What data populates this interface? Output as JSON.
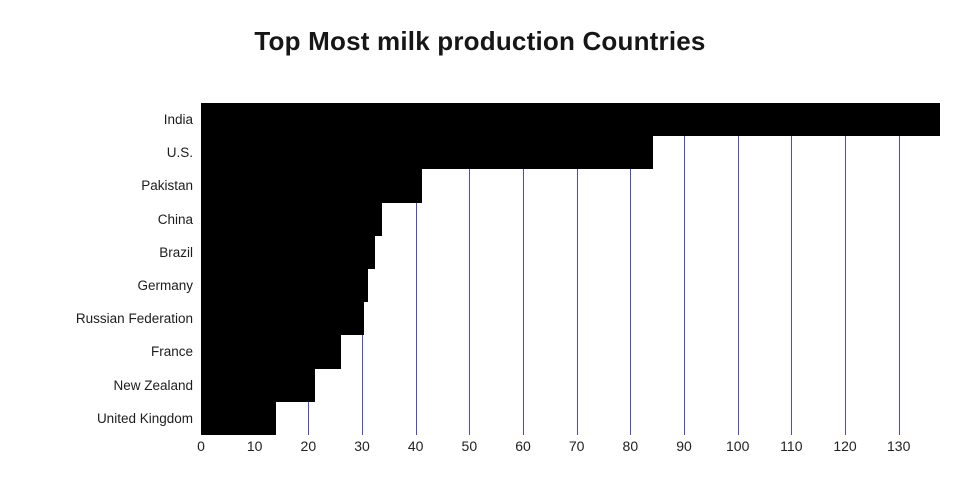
{
  "page": {
    "background": "#ffffff"
  },
  "chart_data": {
    "type": "bar",
    "orientation": "horizontal",
    "title": "Top Most milk production Countries",
    "categories": [
      "India",
      "U.S.",
      "Pakistan",
      "China",
      "Brazil",
      "Germany",
      "Russian Federation",
      "France",
      "New Zealand",
      "United Kingdom"
    ],
    "values": [
      137.7,
      84.2,
      41.1,
      33.8,
      32.4,
      31.1,
      30.3,
      26.1,
      21.2,
      13.9
    ],
    "xlabel": "",
    "ylabel": "",
    "xticks": [
      0,
      10,
      20,
      30,
      40,
      50,
      60,
      70,
      80,
      90,
      100,
      110,
      120,
      130
    ],
    "xlim": [
      0,
      137.7
    ],
    "bar_color": "#000000",
    "grid_color": "#4a4ad9",
    "grid": true,
    "legend_position": "none"
  }
}
